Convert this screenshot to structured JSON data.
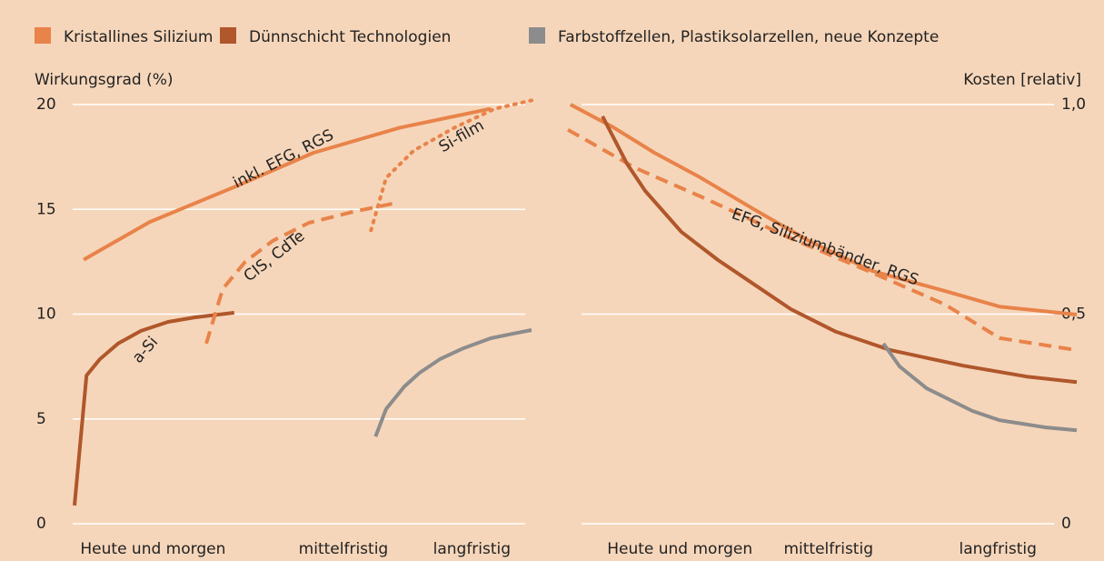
{
  "legend": [
    {
      "label": "Kristallines Silizium",
      "color": "#e8834a"
    },
    {
      "label": "Dünnschicht Technologien",
      "color": "#b0572b"
    },
    {
      "label": "Farbstoffzellen, Plastiksolarzellen, neue Konzepte",
      "color": "#8c8c8c"
    }
  ],
  "chart_data": [
    {
      "type": "line",
      "y_label": "Wirkungsgrad (%)",
      "xlim": [
        0,
        10
      ],
      "ylim": [
        0,
        20
      ],
      "yticks": [
        0,
        5,
        10,
        15,
        20
      ],
      "grid": true,
      "xticks": [
        {
          "value": 1.75,
          "label": "Heute und morgen"
        },
        {
          "value": 5.9,
          "label": "mittelfristig"
        },
        {
          "value": 8.7,
          "label": "langfristig"
        }
      ],
      "series": [
        {
          "color": "#e8834a",
          "style": "solid",
          "x": [
            0.24,
            1.68,
            3.56,
            5.25,
            7.13,
            9.11
          ],
          "values": [
            12.6,
            14.4,
            16.1,
            17.7,
            18.9,
            19.8
          ]
        },
        {
          "color": "#b0572b",
          "style": "solid",
          "x": [
            0.04,
            0.3,
            0.59,
            0.99,
            1.49,
            2.08,
            2.67,
            3.52
          ],
          "values": [
            0.87,
            7.07,
            7.85,
            8.6,
            9.2,
            9.63,
            9.85,
            10.07
          ]
        },
        {
          "color": "#e8834a",
          "style": "dashed",
          "x": [
            2.91,
            3.27,
            3.76,
            4.36,
            5.15,
            6.14,
            6.97
          ],
          "values": [
            8.6,
            11.2,
            12.5,
            13.5,
            14.36,
            14.9,
            15.27
          ]
        },
        {
          "color": "#e8834a",
          "style": "dotted",
          "x": [
            6.5,
            6.83,
            7.43,
            8.32,
            9.2,
            10
          ],
          "values": [
            14.0,
            16.5,
            17.8,
            18.9,
            19.8,
            20.2
          ]
        },
        {
          "color": "#8c8c8c",
          "style": "solid",
          "x": [
            6.6,
            6.83,
            7.23,
            7.56,
            8.0,
            8.51,
            9.11,
            9.6,
            10
          ],
          "values": [
            4.16,
            5.47,
            6.55,
            7.2,
            7.85,
            8.37,
            8.85,
            9.07,
            9.24
          ]
        }
      ],
      "annotations": [
        "inkl. EFG, RGS",
        "Si-film",
        "CIS, CdTe",
        "a-Si"
      ]
    },
    {
      "type": "line",
      "y2_label": "Kosten [relativ]",
      "xlim": [
        0,
        10
      ],
      "y2lim": [
        0,
        1
      ],
      "y2ticks": [
        0,
        {
          "value": 0.5,
          "label": "0,5"
        },
        {
          "value": 1,
          "label": "1,0"
        }
      ],
      "grid": true,
      "xticks": [
        {
          "value": 2.2,
          "label": "Heute und morgen"
        },
        {
          "value": 5.12,
          "label": "mittelfristig"
        },
        {
          "value": 8.45,
          "label": "langfristig"
        }
      ],
      "series": [
        {
          "axis": "y2",
          "color": "#e8834a",
          "style": "solid",
          "x": [
            0.05,
            0.89,
            1.7,
            2.59,
            3.66,
            4.73,
            5.98,
            7.41,
            8.48,
            10
          ],
          "values": [
            1.0,
            0.946,
            0.885,
            0.827,
            0.75,
            0.675,
            0.603,
            0.555,
            0.518,
            0.499
          ]
        },
        {
          "axis": "y2",
          "color": "#e8834a",
          "style": "dashed",
          "x": [
            0,
            1.34,
            2.77,
            4.38,
            5.98,
            7.41,
            8.48,
            10
          ],
          "values": [
            0.94,
            0.848,
            0.772,
            0.681,
            0.599,
            0.523,
            0.443,
            0.414
          ]
        },
        {
          "axis": "y2",
          "color": "#b0572b",
          "style": "solid",
          "x": [
            0.68,
            1.16,
            1.52,
            2.23,
            2.95,
            3.66,
            4.38,
            5.27,
            6.34,
            7.77,
            9.02,
            10
          ],
          "values": [
            0.972,
            0.859,
            0.794,
            0.696,
            0.629,
            0.571,
            0.512,
            0.458,
            0.414,
            0.377,
            0.351,
            0.338
          ]
        },
        {
          "axis": "y2",
          "color": "#8c8c8c",
          "style": "solid",
          "x": [
            6.2,
            6.52,
            7.05,
            7.95,
            8.48,
            9.38,
            10
          ],
          "values": [
            0.43,
            0.375,
            0.323,
            0.269,
            0.247,
            0.23,
            0.223
          ]
        }
      ],
      "annotations": [
        "EFG, Siliziumbänder, RGS"
      ]
    }
  ]
}
